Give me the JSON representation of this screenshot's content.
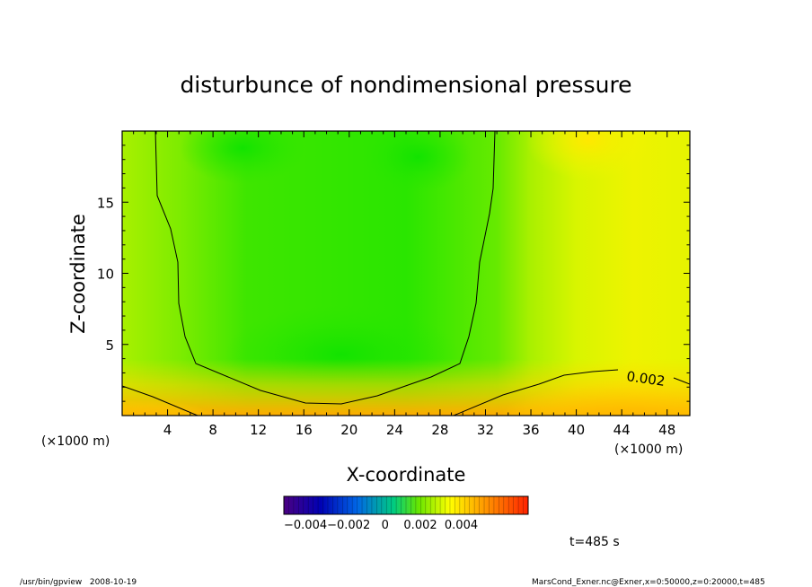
{
  "chart_data": {
    "type": "heatmap",
    "title": "disturbunce of nondimensional pressure",
    "xlabel": "X-coordinate",
    "ylabel": "Z-coordinate",
    "x_unit_left": "(×1000 m)",
    "x_unit_right": "(×1000 m)",
    "xlim": [
      0,
      50
    ],
    "ylim": [
      0,
      20
    ],
    "x_ticks": [
      "4",
      "8",
      "12",
      "16",
      "20",
      "24",
      "28",
      "32",
      "36",
      "40",
      "44",
      "48"
    ],
    "y_ticks": [
      "5",
      "10",
      "15"
    ],
    "contour_label": "0.002",
    "colorbar": {
      "range": [
        -0.005,
        0.005
      ],
      "tick_labels": [
        "−0.004",
        "−0.002",
        "0",
        "0.002",
        "0.004"
      ],
      "label_text": "−0.004−0.002   0    0.002  0.004"
    },
    "time_label": "t=485 s",
    "colors": {
      "green": "#00e600",
      "yellow_green": "#ccff00",
      "yellow": "#ffff00",
      "orange": "#ffaa00"
    }
  },
  "footer": {
    "left": "/usr/bin/gpview   2008-10-19",
    "right": "MarsCond_Exner.nc@Exner,x=0:50000,z=0:20000,t=485"
  }
}
